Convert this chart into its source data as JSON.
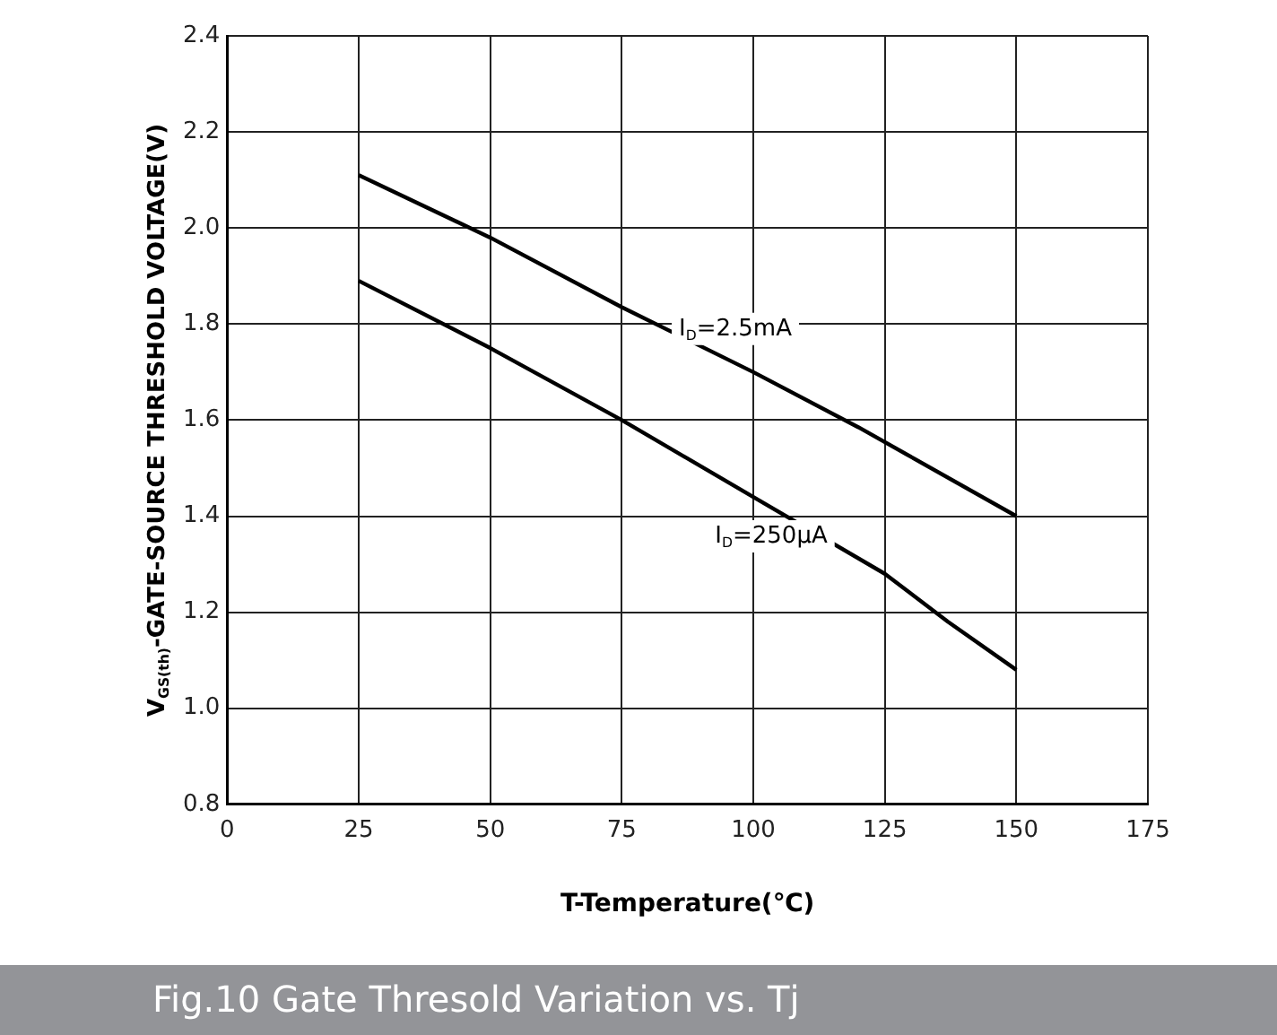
{
  "chart_data": {
    "type": "line",
    "title": "Fig.10 Gate Thresold Variation vs. Tj",
    "xlabel": "T-Temperature(℃)",
    "ylabel": "V$_{GS(th)}$-GATE-SOURCE THRESHOLD VOLTAGE(V)",
    "series": [
      {
        "name": "I$_{D}$=2.5mA",
        "color": "#000000",
        "x": [
          25,
          50,
          75,
          100,
          120,
          150
        ],
        "values": [
          2.11,
          1.98,
          1.835,
          1.7,
          1.585,
          1.4
        ]
      },
      {
        "name": "I$_{D}$=250μA",
        "color": "#000000",
        "x": [
          25,
          50,
          75,
          100,
          125,
          137,
          150
        ],
        "values": [
          1.89,
          1.75,
          1.6,
          1.44,
          1.28,
          1.18,
          1.08
        ]
      }
    ],
    "xlim": [
      0,
      175
    ],
    "xticks": [
      0,
      25,
      50,
      75,
      100,
      125,
      150,
      175
    ],
    "ylim": [
      0.8,
      2.4
    ],
    "yticks": [
      {
        "value": 0.8,
        "label": "0.8"
      },
      {
        "value": 1.0,
        "label": "1.0"
      },
      {
        "value": 1.2,
        "label": "1.2"
      },
      {
        "value": 1.4,
        "label": "1.4"
      },
      {
        "value": 1.6,
        "label": "1.6"
      },
      {
        "value": 1.8,
        "label": "1.8"
      },
      {
        "value": 2.0,
        "label": "2.0"
      },
      {
        "value": 2.2,
        "label": "2.2"
      },
      {
        "value": 2.4,
        "label": "2.4"
      }
    ],
    "grid": true,
    "legend": false,
    "marker": "none",
    "line_style": "solid"
  }
}
